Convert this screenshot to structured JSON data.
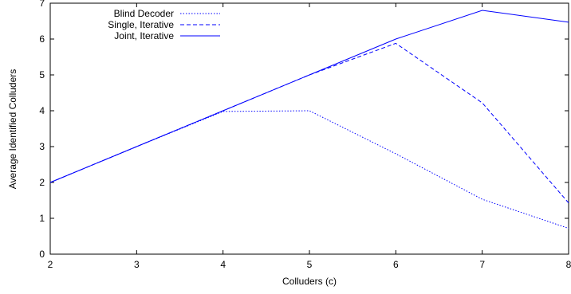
{
  "chart_data": {
    "type": "line",
    "xlabel": "Colluders (c)",
    "ylabel": "Average Identified Colluders",
    "xlim": [
      2,
      8
    ],
    "ylim": [
      0,
      7
    ],
    "x_ticks": [
      "2",
      "3",
      "4",
      "5",
      "6",
      "7",
      "8"
    ],
    "y_ticks": [
      "0",
      "1",
      "2",
      "3",
      "4",
      "5",
      "6",
      "7"
    ],
    "grid": false,
    "legend_position": "top-left",
    "series": [
      {
        "name": "Blind Decoder",
        "style": "dotted",
        "color": "#0000ff",
        "x": [
          2,
          3,
          4,
          5,
          6,
          7,
          8
        ],
        "y": [
          2.0,
          3.0,
          3.98,
          4.0,
          2.8,
          1.53,
          0.72
        ]
      },
      {
        "name": "Single, Iterative",
        "style": "dashed",
        "color": "#0000ff",
        "x": [
          2,
          3,
          4,
          5,
          6,
          7,
          8
        ],
        "y": [
          2.0,
          3.0,
          4.0,
          5.0,
          5.88,
          4.22,
          1.43
        ]
      },
      {
        "name": "Joint, Iterative",
        "style": "solid",
        "color": "#0000ff",
        "x": [
          2,
          3,
          4,
          5,
          6,
          7,
          8
        ],
        "y": [
          2.0,
          3.0,
          4.0,
          5.0,
          6.0,
          6.8,
          6.47
        ]
      }
    ]
  }
}
